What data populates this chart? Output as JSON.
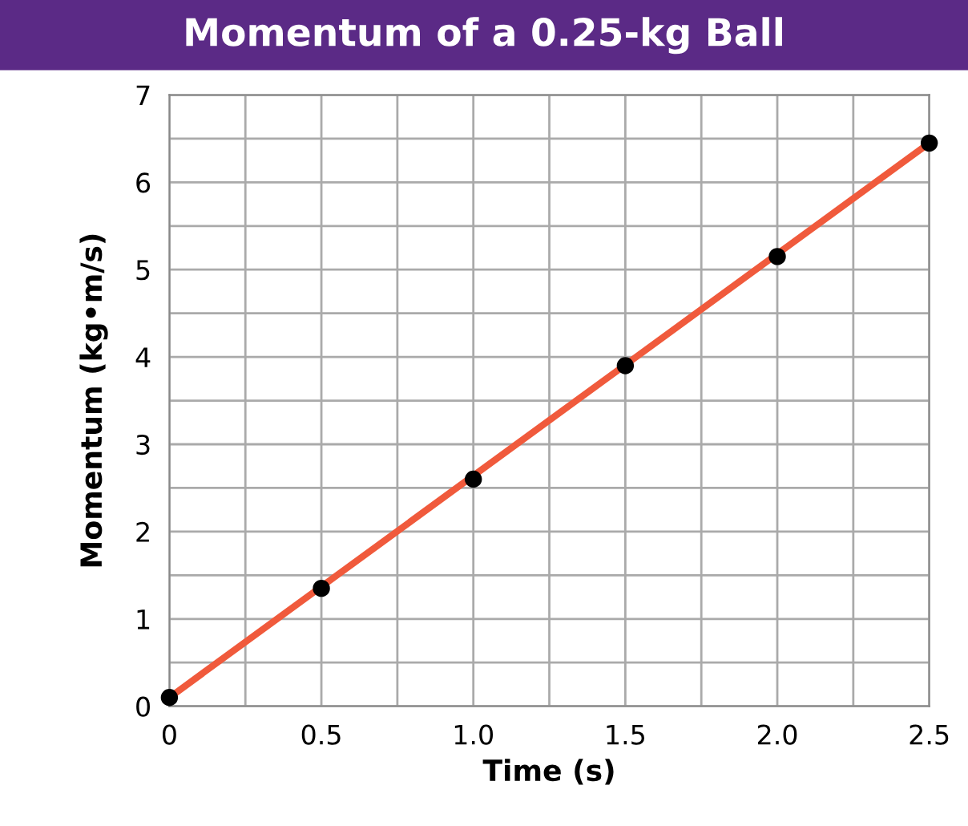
{
  "chart_data": {
    "type": "scatter",
    "title": "Momentum of a 0.25-kg Ball",
    "xlabel": "Time (s)",
    "ylabel": "Momentum (kg•m/s)",
    "series": [
      {
        "type": "line",
        "color": "#f05a3c",
        "x": [
          0,
          2.5
        ],
        "values": [
          0.1,
          6.45
        ]
      },
      {
        "marker": "circle",
        "color": "#000000",
        "x": [
          0,
          0.5,
          1.0,
          1.5,
          2.0,
          2.5
        ],
        "values": [
          0.1,
          1.35,
          2.6,
          3.9,
          5.15,
          6.45
        ]
      }
    ],
    "xlim": [
      0,
      2.5
    ],
    "ylim": [
      0,
      7
    ],
    "xticks": [
      0,
      {
        "value": 0.25,
        "label": null
      },
      0.5,
      {
        "value": 0.75,
        "label": null
      },
      {
        "value": 1.0,
        "label": "1.0"
      },
      {
        "value": 1.25,
        "label": null
      },
      1.5,
      {
        "value": 1.75,
        "label": null
      },
      {
        "value": 2.0,
        "label": "2.0"
      },
      {
        "value": 2.25,
        "label": null
      },
      2.5
    ],
    "yticks": [
      0,
      {
        "value": 0.5,
        "label": null
      },
      1,
      {
        "value": 1.5,
        "label": null
      },
      2,
      {
        "value": 2.5,
        "label": null
      },
      3,
      {
        "value": 3.5,
        "label": null
      },
      4,
      {
        "value": 4.5,
        "label": null
      },
      5,
      {
        "value": 5.5,
        "label": null
      },
      6,
      {
        "value": 6.5,
        "label": null
      },
      7
    ],
    "grid": true
  }
}
